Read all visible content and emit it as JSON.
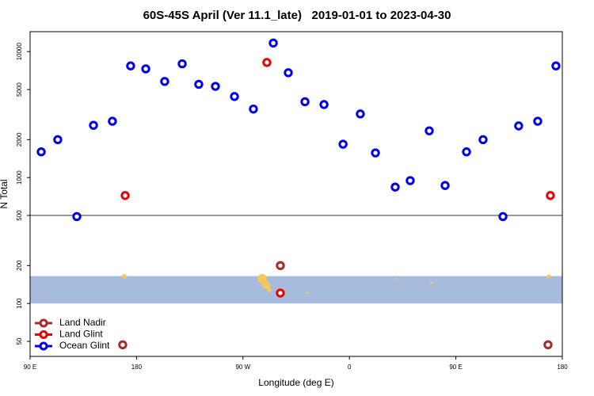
{
  "chart_data": {
    "type": "scatter",
    "title": "60S-45S April (Ver 11.1_late)   2019-01-01 to 2023-04-30",
    "x_label": "Longitude (deg E)",
    "y_label": "N Total",
    "xlim": [
      90,
      540
    ],
    "xticks": [
      {
        "value": 90,
        "label": "90 E"
      },
      180,
      {
        "value": 270,
        "label": "90 W"
      },
      {
        "value": 360,
        "label": "0"
      },
      {
        "value": 450,
        "label": "90 E"
      },
      {
        "value": 540,
        "label": "180"
      }
    ],
    "ylim": [
      38,
      14400
    ],
    "ylog": true,
    "yticks": [
      50,
      100,
      200,
      500,
      1000,
      2000,
      5000,
      10000
    ],
    "hline": 500,
    "shaded_band": [
      100,
      165
    ],
    "legend_position": "bottom-left",
    "series": [
      {
        "name": "Land Nadir",
        "color": "#a52a2a",
        "x": [
          168.3,
          301.6,
          527.9
        ],
        "values": [
          47,
          200,
          47
        ]
      },
      {
        "name": "Land Glint",
        "color": "#ee0000",
        "x": [
          170.4,
          290.2,
          301.6,
          529.9
        ],
        "values": [
          720,
          8200,
          121,
          720
        ]
      },
      {
        "name": "Ocean Glint",
        "color": "#0000ee",
        "x": [
          99.4,
          113.4,
          129.5,
          143.6,
          159.6,
          175,
          187.8,
          203.8,
          218.6,
          232.6,
          246.7,
          262.8,
          278.8,
          295.6,
          308.3,
          322.4,
          338.5,
          354.6,
          369.2,
          382,
          398.7,
          411.4,
          427.5,
          440.9,
          459,
          473,
          489.8,
          503.1,
          519.2,
          534.6
        ],
        "values": [
          1600,
          2000,
          490,
          2600,
          2800,
          7700,
          7300,
          5800,
          8000,
          5500,
          5300,
          4400,
          3500,
          11700,
          6800,
          4000,
          3800,
          1840,
          3200,
          1570,
          840,
          945,
          2350,
          865,
          1600,
          2000,
          490,
          2570,
          2800,
          7700
        ]
      }
    ]
  }
}
